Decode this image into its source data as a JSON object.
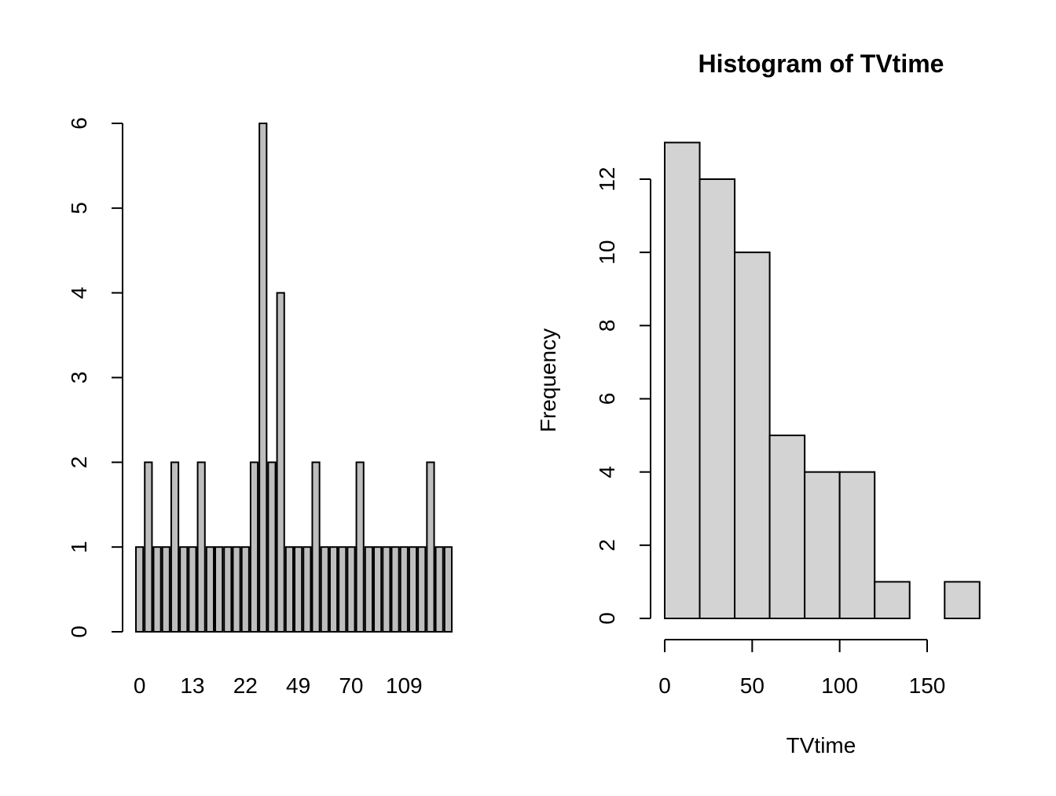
{
  "chart_data": [
    {
      "type": "bar",
      "title": "",
      "xlabel": "",
      "ylabel": "",
      "ylim": [
        0,
        6
      ],
      "yticks": [
        0,
        1,
        2,
        3,
        4,
        5,
        6
      ],
      "values": [
        1,
        2,
        1,
        1,
        2,
        1,
        1,
        2,
        1,
        1,
        1,
        1,
        1,
        2,
        6,
        2,
        4,
        1,
        1,
        1,
        2,
        1,
        1,
        1,
        1,
        2,
        1,
        1,
        1,
        1,
        1,
        1,
        1,
        2,
        1,
        1
      ],
      "visible_category_labels": [
        "0",
        "13",
        "22",
        "49",
        "70",
        "109"
      ],
      "bar_color": "#bebebe"
    },
    {
      "type": "bar",
      "title": "Histogram of TVtime",
      "xlabel": "TVtime",
      "ylabel": "Frequency",
      "bin_edges": [
        0,
        20,
        40,
        60,
        80,
        100,
        120,
        140,
        160,
        180
      ],
      "values": [
        13,
        12,
        10,
        5,
        4,
        4,
        1,
        0,
        1
      ],
      "xticks": [
        0,
        50,
        100,
        150
      ],
      "yticks": [
        0,
        2,
        4,
        6,
        8,
        10,
        12
      ],
      "bar_color": "#d3d3d3"
    }
  ]
}
